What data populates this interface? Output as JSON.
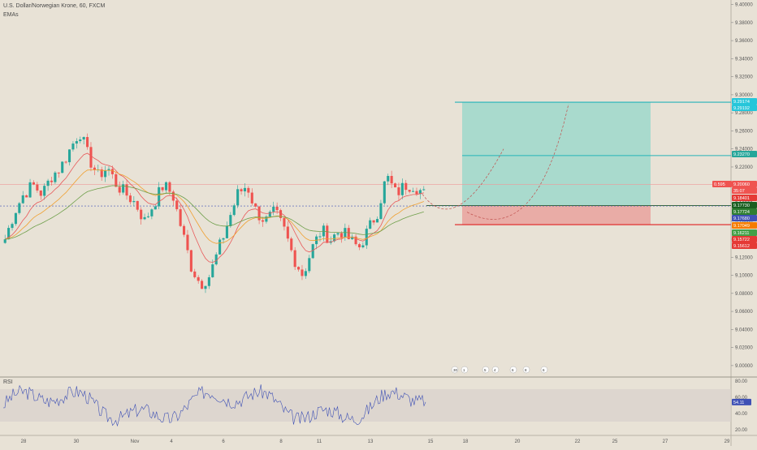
{
  "header": {
    "title": "U.S. Dollar/Norwegian Krone, 60, FXCM",
    "indicator": "EMAs",
    "rsi_label": "RSI"
  },
  "colors": {
    "background": "#e8e2d6",
    "up": "#26a69a",
    "down": "#ef5350",
    "target_zone": "#7fd6c6",
    "stop_zone": "#e99a95",
    "target_line": "#24b3b8",
    "stop_line": "#e02020",
    "ema_red": "#e8595a",
    "ema_orange": "#f0a030",
    "ema_green": "#6e9f4a",
    "rsi_line": "#3f51b5"
  },
  "axis": {
    "price_ticks": [
      "9.40000",
      "9.38000",
      "9.36000",
      "9.34000",
      "9.32000",
      "9.30000",
      "9.28000",
      "9.26000",
      "9.24000",
      "9.22000",
      "9.20000",
      "9.18000",
      "9.16000",
      "9.14000",
      "9.12000",
      "9.10000",
      "9.08000",
      "9.06000",
      "9.04000",
      "9.02000",
      "9.00000"
    ],
    "time_ticks": [
      "28",
      "30",
      "Nov",
      "4",
      "6",
      "8",
      "11",
      "13",
      "15",
      "18",
      "20",
      "22",
      "25",
      "27",
      "29"
    ],
    "rsi_ticks": [
      "80.00",
      "60.00",
      "40.00",
      "20.00"
    ]
  },
  "price_labels": [
    {
      "text": "9.29174",
      "bg": "#26c6da",
      "fg": "#ffffff"
    },
    {
      "text": "9.29192",
      "bg": "#26c6da",
      "fg": "#ffffff"
    },
    {
      "text": "9.23270",
      "bg": "#26a69a",
      "fg": "#ffffff"
    },
    {
      "text": "0.595",
      "bg": "#ef5350",
      "fg": "#ffffff"
    },
    {
      "text": "9.20060",
      "bg": "#ef5350",
      "fg": "#ffffff"
    },
    {
      "text": "35:07",
      "bg": "#ef5350",
      "fg": "#ffffff"
    },
    {
      "text": "9.18401",
      "bg": "#e53935",
      "fg": "#ffffff"
    },
    {
      "text": "9.17730",
      "bg": "#1b5e20",
      "fg": "#ffffff"
    },
    {
      "text": "9.17724",
      "bg": "#2e7d32",
      "fg": "#ffffff"
    },
    {
      "text": "9.17680",
      "bg": "#3f51b5",
      "fg": "#ffffff"
    },
    {
      "text": "9.17049",
      "bg": "#f57c00",
      "fg": "#ffffff"
    },
    {
      "text": "9.16211",
      "bg": "#43a047",
      "fg": "#ffffff"
    },
    {
      "text": "9.15722",
      "bg": "#e53935",
      "fg": "#ffffff"
    },
    {
      "text": "9.15612",
      "bg": "#e53935",
      "fg": "#ffffff"
    }
  ],
  "rsi_value_label": "54.11",
  "event_badges": [
    "30",
    "1",
    "5",
    "4",
    "6",
    "8",
    "6"
  ],
  "chart_data": {
    "type": "candlestick",
    "symbol": "USD/NOK",
    "interval": "60",
    "ylim": [
      8.99,
      9.405
    ],
    "x_labels": [
      "28",
      "30",
      "Nov",
      "4",
      "6",
      "8",
      "11",
      "13",
      "15",
      "18",
      "20",
      "22",
      "25",
      "27",
      "29"
    ],
    "close_path": [
      9.14,
      9.17,
      9.19,
      9.2,
      9.19,
      9.21,
      9.22,
      9.24,
      9.26,
      9.23,
      9.21,
      9.22,
      9.2,
      9.19,
      9.18,
      9.16,
      9.18,
      9.2,
      9.19,
      9.15,
      9.11,
      9.09,
      9.1,
      9.13,
      9.16,
      9.19,
      9.2,
      9.17,
      9.16,
      9.17,
      9.15,
      9.12,
      9.1,
      9.13,
      9.15,
      9.14,
      9.15,
      9.14,
      9.13,
      9.15,
      9.17,
      9.21,
      9.19,
      9.2,
      9.2,
      9.19
    ],
    "trade_setup": {
      "entry": 9.1773,
      "target": 9.29174,
      "mid_target": 9.2327,
      "stop": 9.15612,
      "current_price": 9.2006,
      "current_change_pct": "0.595"
    },
    "rsi": {
      "last": 54.11,
      "upper": 70,
      "lower": 30,
      "ylim": [
        15,
        85
      ]
    }
  }
}
